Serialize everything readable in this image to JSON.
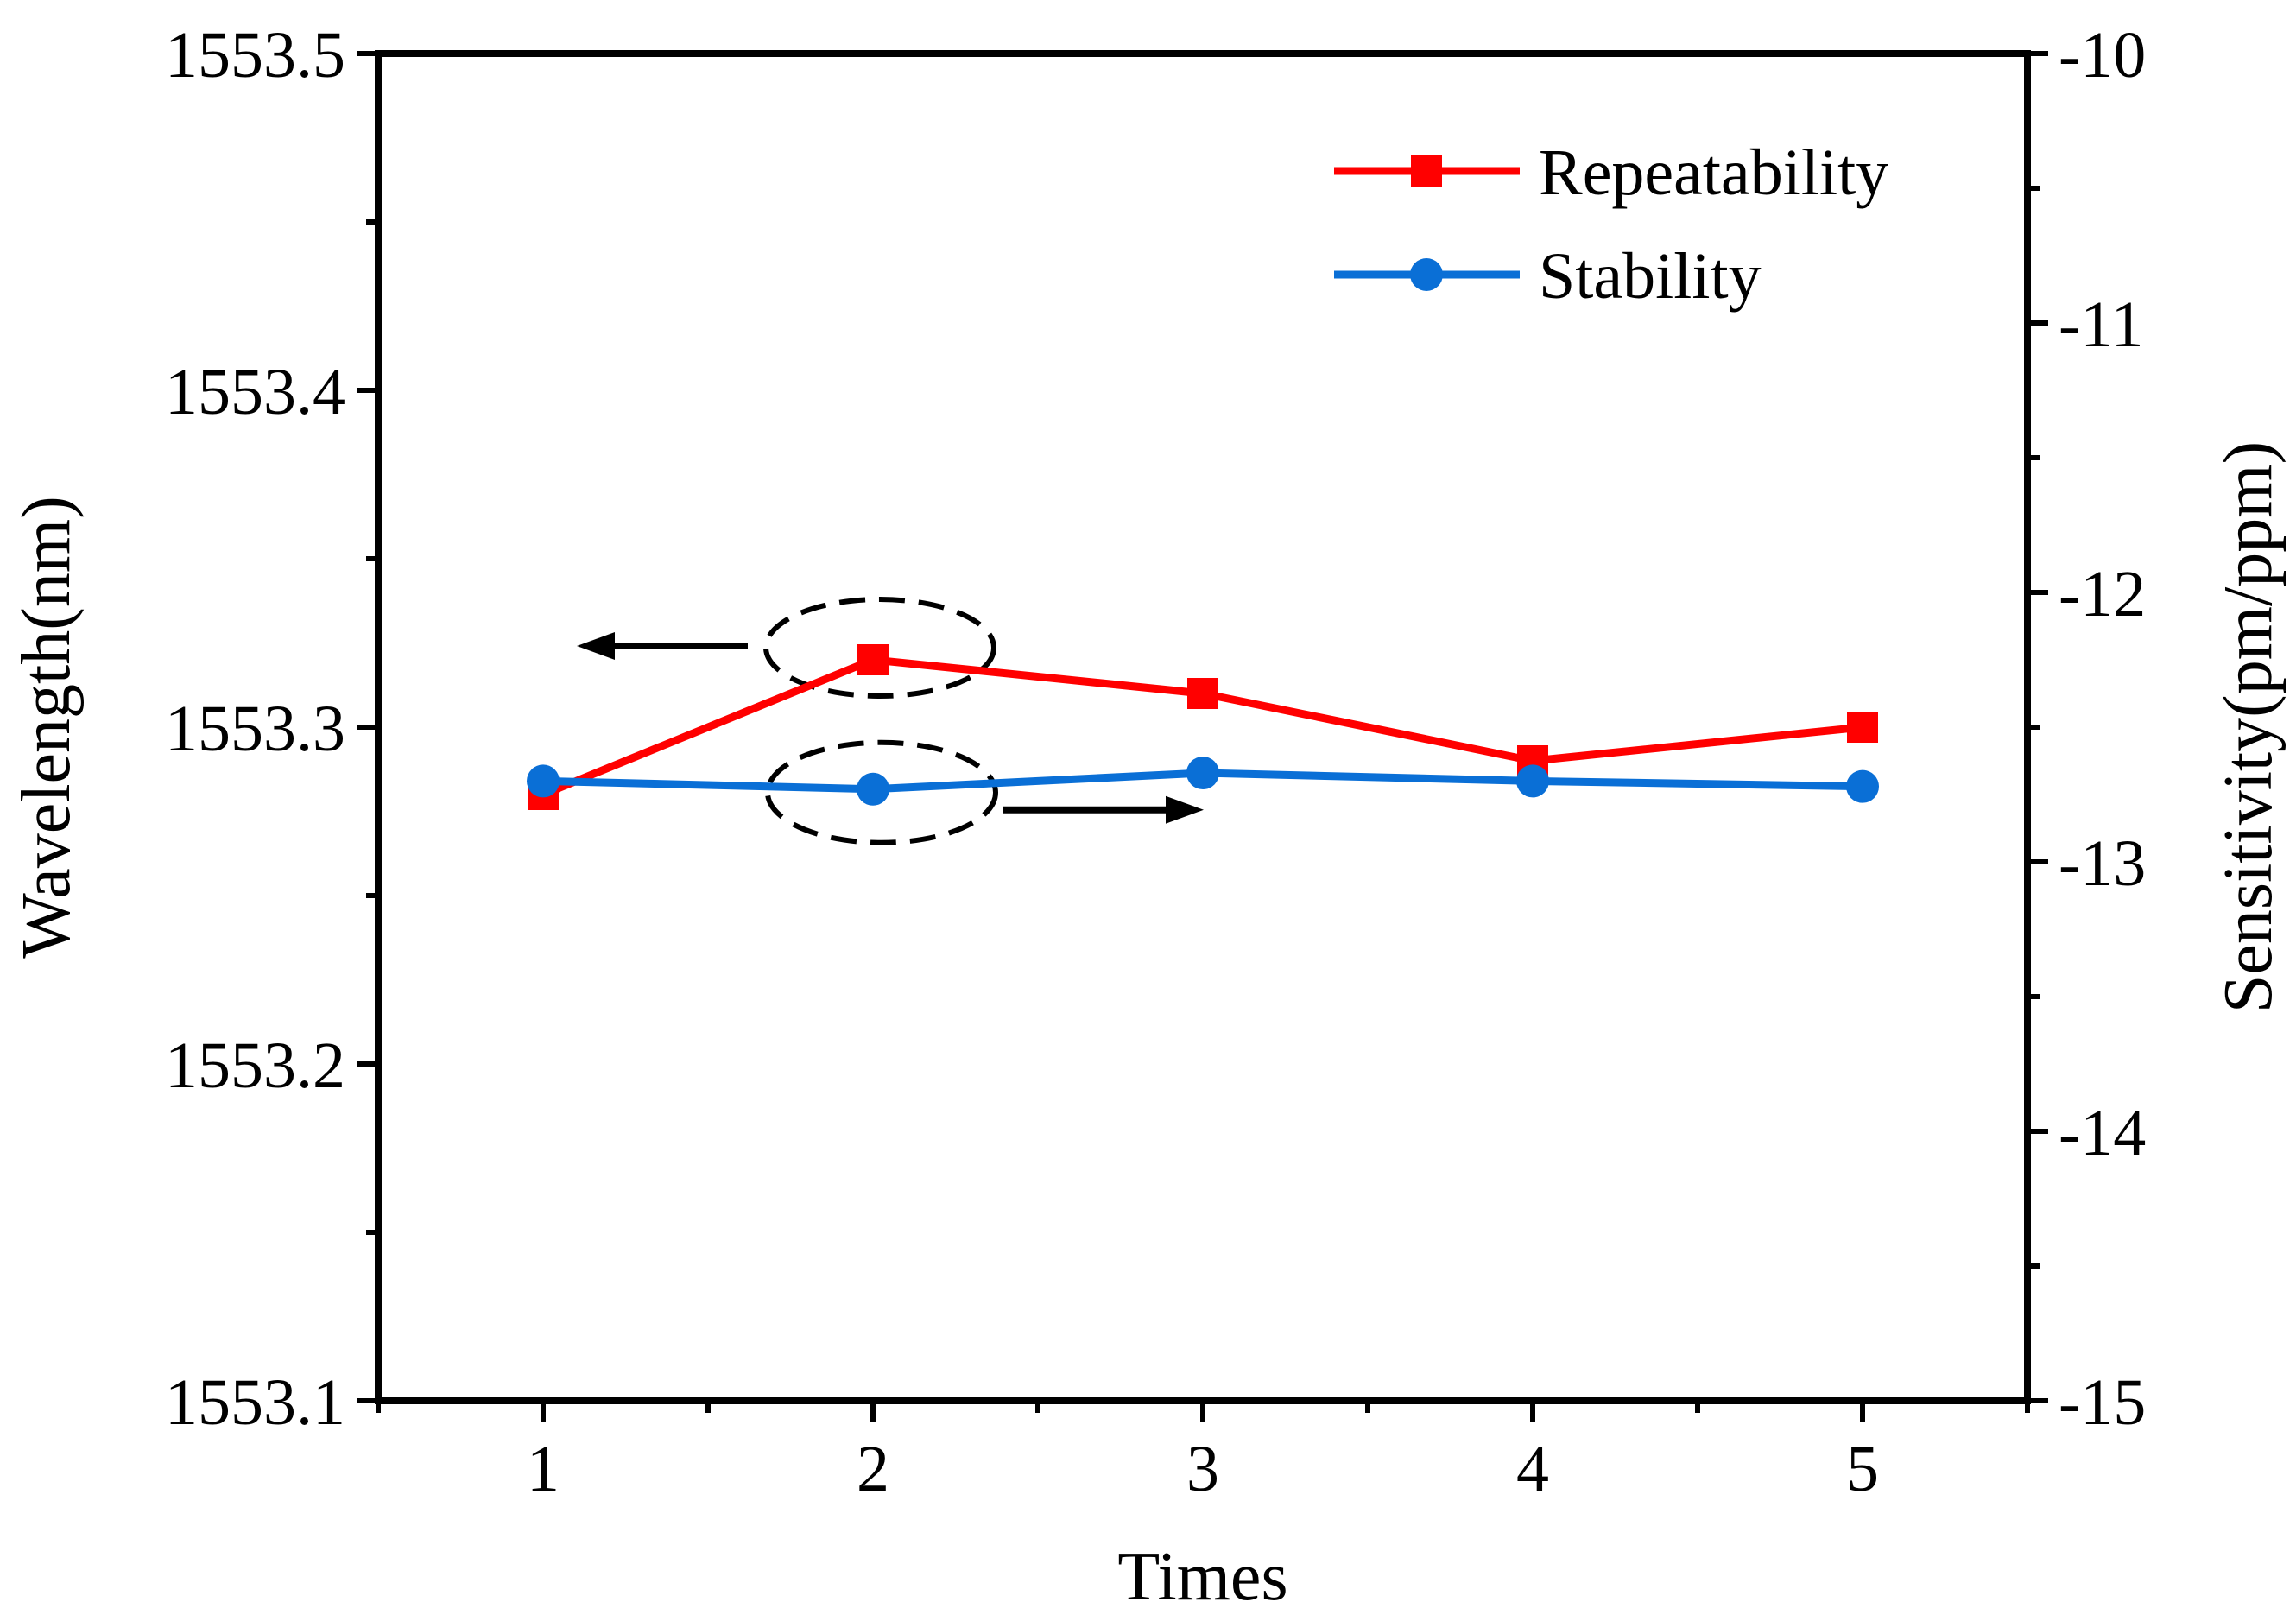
{
  "chart_data": {
    "type": "line",
    "title": "",
    "xlabel": "Times",
    "ylabel": "Wavelength(nm)",
    "y2label": "Sensitivity(pm/ppm)",
    "x": [
      1,
      2,
      3,
      4,
      5
    ],
    "x_tick_labels": [
      "1",
      "2",
      "3",
      "4",
      "5"
    ],
    "xlim": [
      0.5,
      5.5
    ],
    "ylim": [
      1553.1,
      1553.5
    ],
    "y_tick_labels": [
      "1553.1",
      "1553.2",
      "1553.3",
      "1553.4",
      "1553.5"
    ],
    "y2lim": [
      -15,
      -10
    ],
    "y2_tick_labels": [
      "-15",
      "-14",
      "-13",
      "-12",
      "-11",
      "-10"
    ],
    "grid": false,
    "legend_position": "top-right",
    "series": [
      {
        "name": "Repeatability",
        "axis": "left",
        "marker": "square",
        "color": "#ff0000",
        "values": [
          1553.28,
          1553.32,
          1553.31,
          1553.29,
          1553.3
        ]
      },
      {
        "name": "Stability",
        "axis": "right",
        "marker": "circle",
        "color": "#0a6fd6",
        "values": [
          -12.7,
          -12.73,
          -12.67,
          -12.7,
          -12.72
        ]
      }
    ],
    "annotations": [
      {
        "type": "ellipse-arrow",
        "target_series": "Repeatability",
        "at_x": 2,
        "arrow_direction": "left",
        "meaning": "left axis"
      },
      {
        "type": "ellipse-arrow",
        "target_series": "Stability",
        "at_x": 2,
        "arrow_direction": "right",
        "meaning": "right axis"
      }
    ]
  }
}
